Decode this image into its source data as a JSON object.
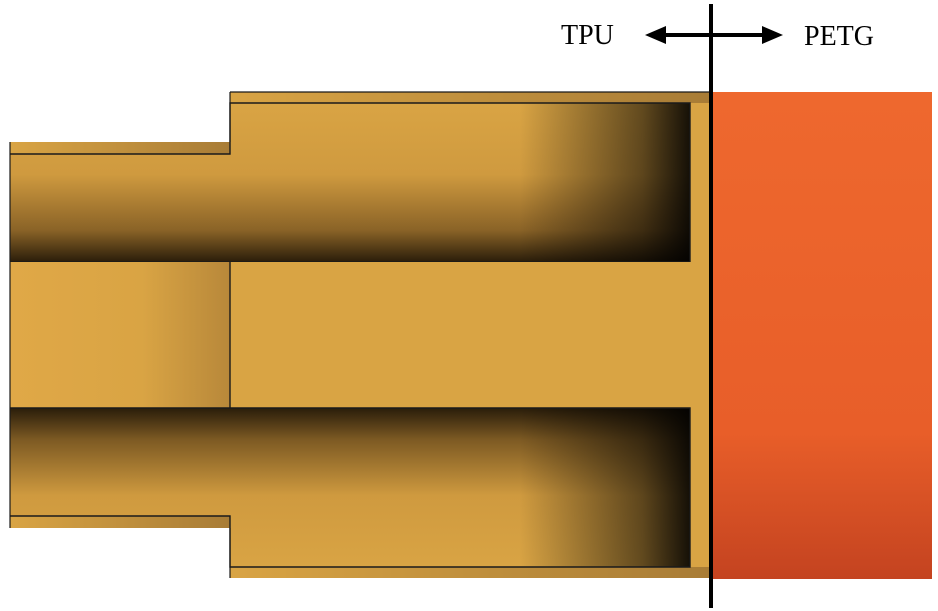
{
  "labels": {
    "left_material": "TPU",
    "right_material": "PETG"
  },
  "colors": {
    "tpu_body": "#D9A444",
    "tpu_outline": "#1a1a1a",
    "petg_top": "#EE672D",
    "petg_bottom": "#C9441F",
    "divider": "#000000"
  }
}
